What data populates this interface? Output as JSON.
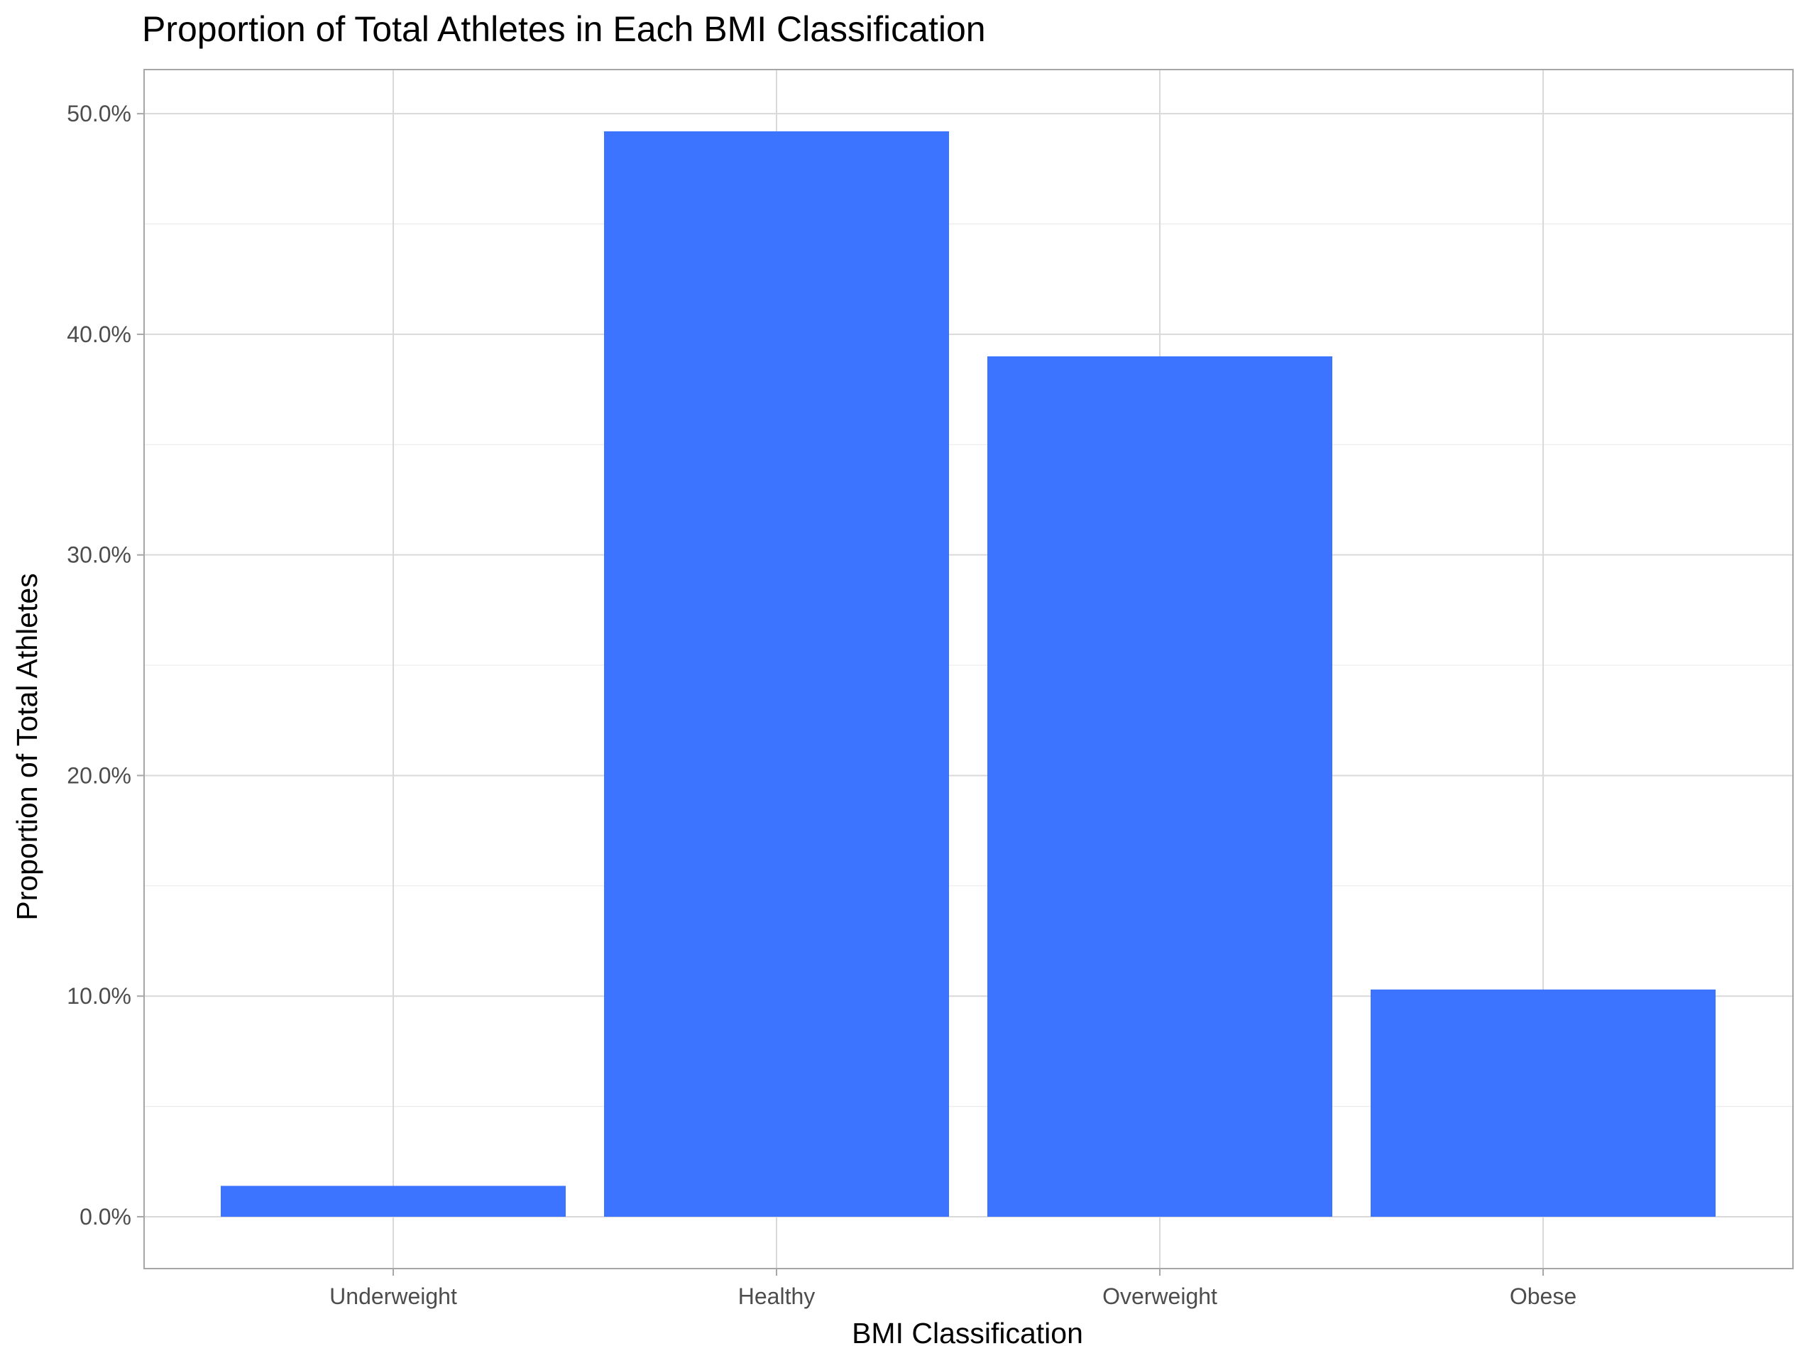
{
  "chart_data": {
    "type": "bar",
    "title": "Proportion of Total Athletes in Each BMI Classification",
    "xlabel": "BMI Classification",
    "ylabel": "Proportion of Total Athletes",
    "categories": [
      "Underweight",
      "Healthy",
      "Overweight",
      "Obese"
    ],
    "values": [
      1.4,
      49.2,
      39.0,
      10.3
    ],
    "value_unit": "percent",
    "ylim": [
      -2.35,
      52.0
    ],
    "yticks": [
      0,
      10,
      20,
      30,
      40,
      50
    ],
    "ytick_labels": [
      "0.0%",
      "10.0%",
      "20.0%",
      "30.0%",
      "40.0%",
      "50.0%"
    ],
    "grid": true,
    "legend": "none",
    "bar_color": "#3d74ff"
  }
}
